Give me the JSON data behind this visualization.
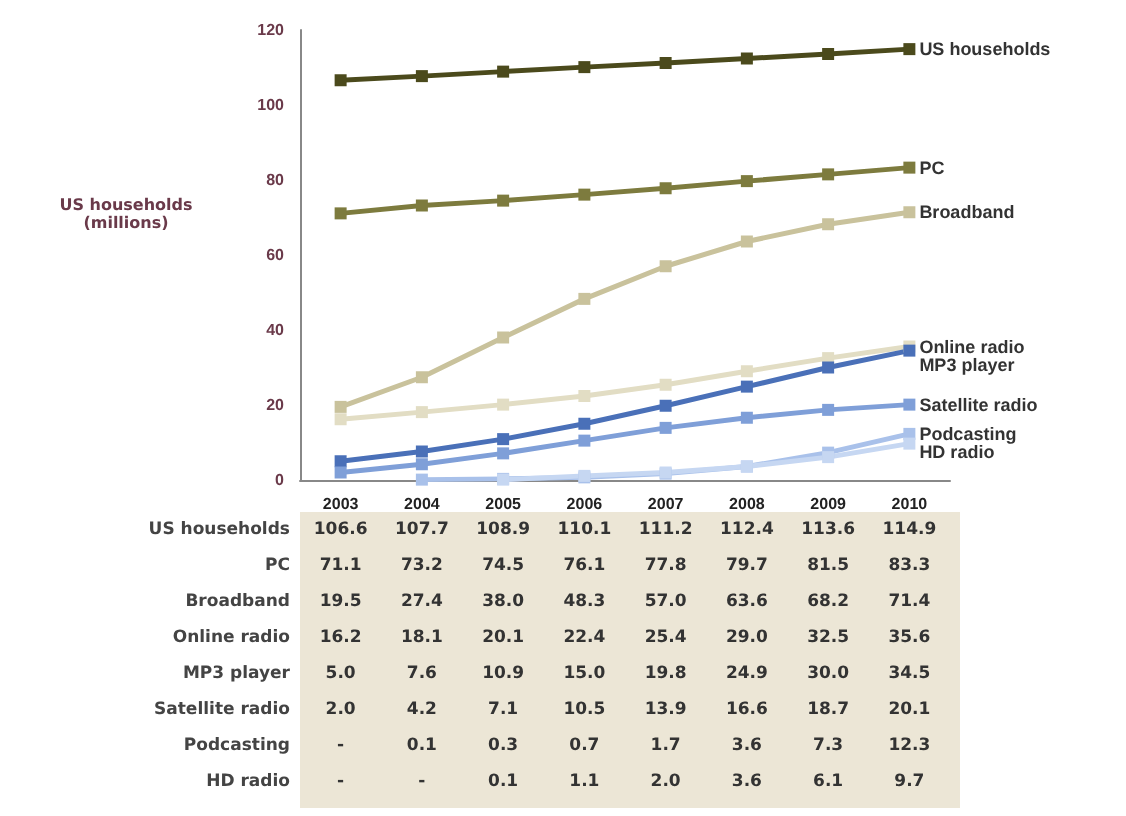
{
  "chart_data": {
    "type": "line",
    "ylabel": "US households\n(millions)",
    "categories": [
      "2003",
      "2004",
      "2005",
      "2006",
      "2007",
      "2008",
      "2009",
      "2010"
    ],
    "ylim": [
      0,
      120
    ],
    "yticks": [
      0,
      20,
      40,
      60,
      80,
      100,
      120
    ],
    "grid": false,
    "legend": false,
    "marker": "square",
    "line_style": "solid",
    "data_labels": true,
    "series": [
      {
        "name": "US households",
        "color": "#4b4a1c",
        "values": [
          106.6,
          107.7,
          108.9,
          110.1,
          111.2,
          112.4,
          113.6,
          114.9
        ],
        "value_labels": [
          "106.6",
          "107.7",
          "108.9",
          "110.1",
          "111.2",
          "112.4",
          "113.6",
          "114.9"
        ]
      },
      {
        "name": "PC",
        "color": "#7d7b3e",
        "values": [
          71.1,
          73.2,
          74.5,
          76.1,
          77.8,
          79.7,
          81.5,
          83.3
        ],
        "value_labels": [
          "71.1",
          "73.2",
          "74.5",
          "76.1",
          "77.8",
          "79.7",
          "81.5",
          "83.3"
        ]
      },
      {
        "name": "Broadband",
        "color": "#c9c29c",
        "values": [
          19.5,
          27.4,
          38.0,
          48.3,
          57.0,
          63.6,
          68.2,
          71.4
        ],
        "value_labels": [
          "19.5",
          "27.4",
          "38.0",
          "48.3",
          "57.0",
          "63.6",
          "68.2",
          "71.4"
        ]
      },
      {
        "name": "Online radio",
        "color": "#e2ddc4",
        "values": [
          16.2,
          18.1,
          20.1,
          22.4,
          25.4,
          29.0,
          32.5,
          35.6
        ],
        "value_labels": [
          "16.2",
          "18.1",
          "20.1",
          "22.4",
          "25.4",
          "29.0",
          "32.5",
          "35.6"
        ]
      },
      {
        "name": "MP3 player",
        "color": "#4a70b8",
        "values": [
          5.0,
          7.6,
          10.9,
          15.0,
          19.8,
          24.9,
          30.0,
          34.5
        ],
        "value_labels": [
          "5.0",
          "7.6",
          "10.9",
          "15.0",
          "19.8",
          "24.9",
          "30.0",
          "34.5"
        ]
      },
      {
        "name": "Satellite radio",
        "color": "#7f9fd8",
        "values": [
          2.0,
          4.2,
          7.1,
          10.5,
          13.9,
          16.6,
          18.7,
          20.1
        ],
        "value_labels": [
          "2.0",
          "4.2",
          "7.1",
          "10.5",
          "13.9",
          "16.6",
          "18.7",
          "20.1"
        ]
      },
      {
        "name": "Podcasting",
        "color": "#a9c1ea",
        "values": [
          null,
          0.1,
          0.3,
          0.7,
          1.7,
          3.6,
          7.3,
          12.3
        ],
        "value_labels": [
          "-",
          "0.1",
          "0.3",
          "0.7",
          "1.7",
          "3.6",
          "7.3",
          "12.3"
        ]
      },
      {
        "name": "HD radio",
        "color": "#c6d7f2",
        "values": [
          null,
          null,
          0.1,
          1.1,
          2.0,
          3.6,
          6.1,
          9.7
        ],
        "value_labels": [
          "-",
          "-",
          "0.1",
          "1.1",
          "2.0",
          "3.6",
          "6.1",
          "9.7"
        ]
      }
    ]
  }
}
